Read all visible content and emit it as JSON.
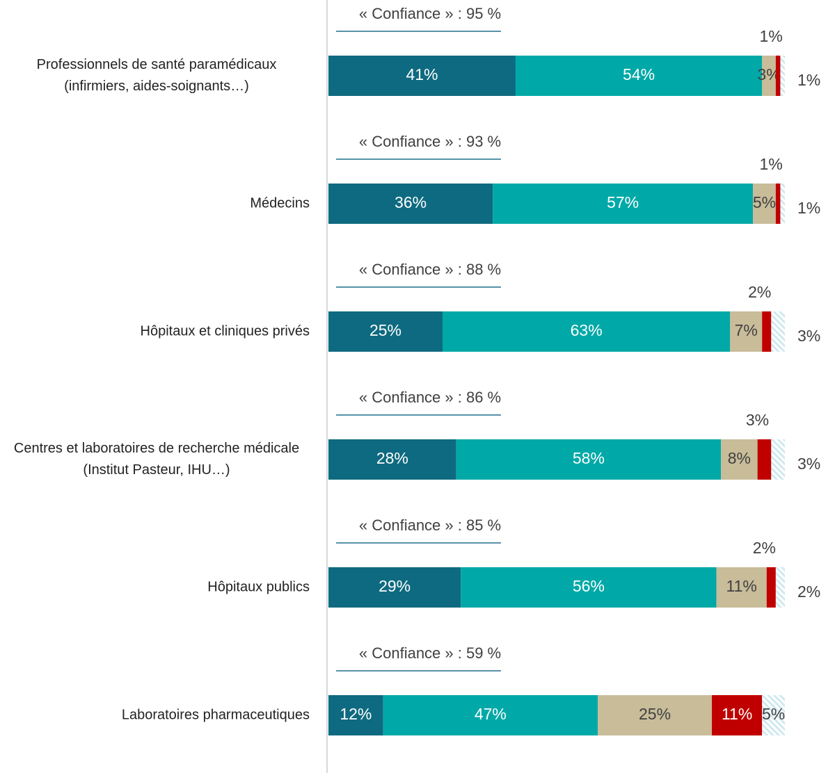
{
  "chart_data": {
    "type": "stacked-bar-horizontal",
    "categories": [
      "Professionnels de santé paramédicaux (infirmiers, aides-soignants…)",
      "Médecins",
      "Hôpitaux et cliniques privés",
      "Centres et laboratoires de recherche médicale (Institut Pasteur, IHU…)",
      "Hôpitaux publics",
      "Laboratoires pharmaceutiques"
    ],
    "annotations": [
      "« Confiance » : 95 %",
      "« Confiance » : 93 %",
      "« Confiance » : 88 %",
      "« Confiance » : 86 %",
      "« Confiance » : 85 %",
      "« Confiance » : 59 %"
    ],
    "xlim": [
      0,
      100
    ],
    "series": [
      {
        "color": "#0e6a80",
        "values": [
          41,
          36,
          25,
          28,
          29,
          12
        ],
        "value_labels": [
          "41%",
          "36%",
          "25%",
          "28%",
          "29%",
          "12%"
        ]
      },
      {
        "color": "#00a9a7",
        "values": [
          54,
          57,
          63,
          58,
          56,
          47
        ],
        "value_labels": [
          "54%",
          "57%",
          "63%",
          "58%",
          "56%",
          "47%"
        ]
      },
      {
        "color": "#c8bc99",
        "values": [
          3,
          5,
          7,
          8,
          11,
          25
        ],
        "value_labels": [
          "3%",
          "5%",
          "7%",
          "8%",
          "11%",
          "25%"
        ]
      },
      {
        "color": "#c00000",
        "values": [
          1,
          1,
          2,
          3,
          2,
          11
        ],
        "value_labels": [
          "1%",
          "1%",
          "2%",
          "3%",
          "2%",
          "11%"
        ]
      },
      {
        "color": "#cfe9ef",
        "hatched": true,
        "values": [
          1,
          1,
          3,
          3,
          2,
          5
        ],
        "value_labels": [
          "1%",
          "1%",
          "3%",
          "3%",
          "2%",
          "5%"
        ]
      }
    ]
  }
}
